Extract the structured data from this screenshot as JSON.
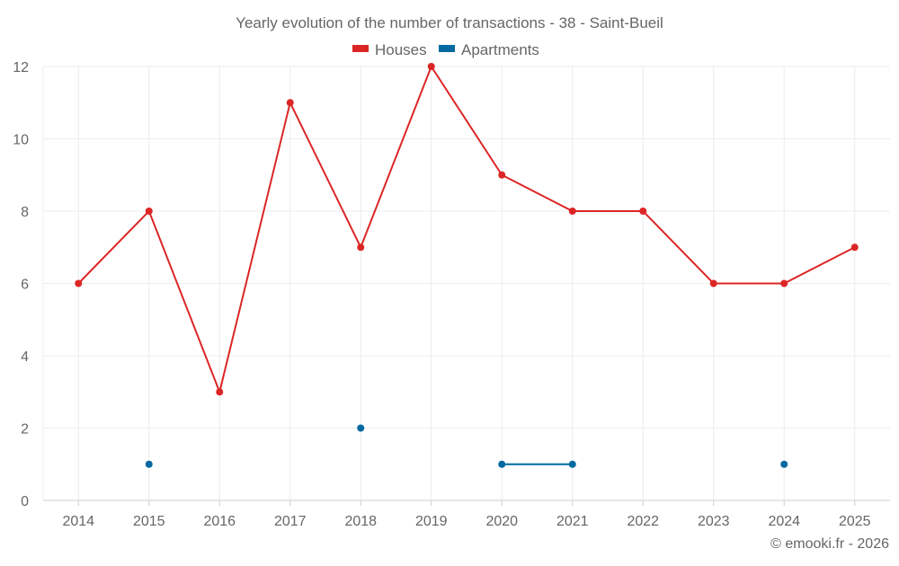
{
  "chart_data": {
    "type": "line",
    "title": "Yearly evolution of the number of transactions - 38 - Saint-Bueil",
    "categories": [
      "2014",
      "2015",
      "2016",
      "2017",
      "2018",
      "2019",
      "2020",
      "2021",
      "2022",
      "2023",
      "2024",
      "2025"
    ],
    "series": [
      {
        "name": "Houses",
        "color": "#dc2626",
        "values": [
          6,
          8,
          3,
          11,
          7,
          12,
          9,
          8,
          8,
          6,
          6,
          7
        ]
      },
      {
        "name": "Apartments",
        "color": "#0369a1",
        "values": [
          null,
          1,
          null,
          null,
          2,
          null,
          1,
          1,
          null,
          null,
          1,
          null
        ]
      }
    ],
    "ylim": [
      0,
      12
    ],
    "yticks": [
      "0",
      "2",
      "4",
      "6",
      "8",
      "10",
      "12"
    ],
    "grid": true,
    "legend_position": "top-center",
    "xlabel": "",
    "ylabel": ""
  },
  "credit": "© emooki.fr - 2026"
}
